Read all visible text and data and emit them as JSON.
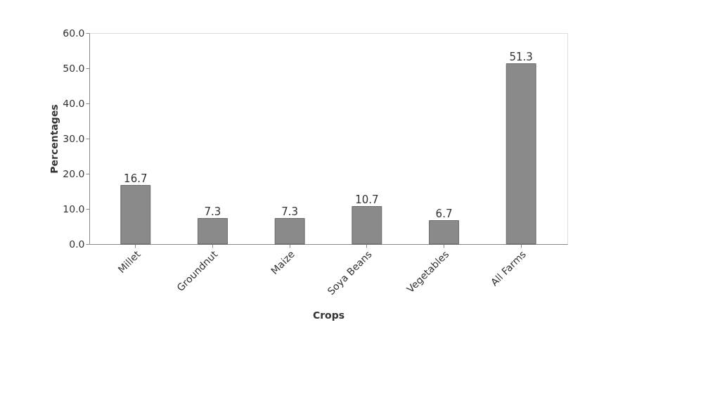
{
  "chart_data": {
    "type": "bar",
    "xlabel": "Crops",
    "ylabel": "Percentages",
    "categories": [
      "Millet",
      "Groundnut",
      "Maize",
      "Soya Beans",
      "Vegetables",
      "All Farms"
    ],
    "values": [
      16.7,
      7.3,
      7.3,
      10.7,
      6.7,
      51.3
    ],
    "color": "#8a8a8a",
    "ylim": [
      0,
      60
    ],
    "yticks": [
      {
        "value": 0,
        "label": "0.0"
      },
      {
        "value": 10,
        "label": "10.0"
      },
      {
        "value": 20,
        "label": "20.0"
      },
      {
        "value": 30,
        "label": "30.0"
      },
      {
        "value": 40,
        "label": "40.0"
      },
      {
        "value": 50,
        "label": "50.0"
      },
      {
        "value": 60,
        "label": "60.0"
      }
    ],
    "data_labels": true,
    "grid": false
  }
}
